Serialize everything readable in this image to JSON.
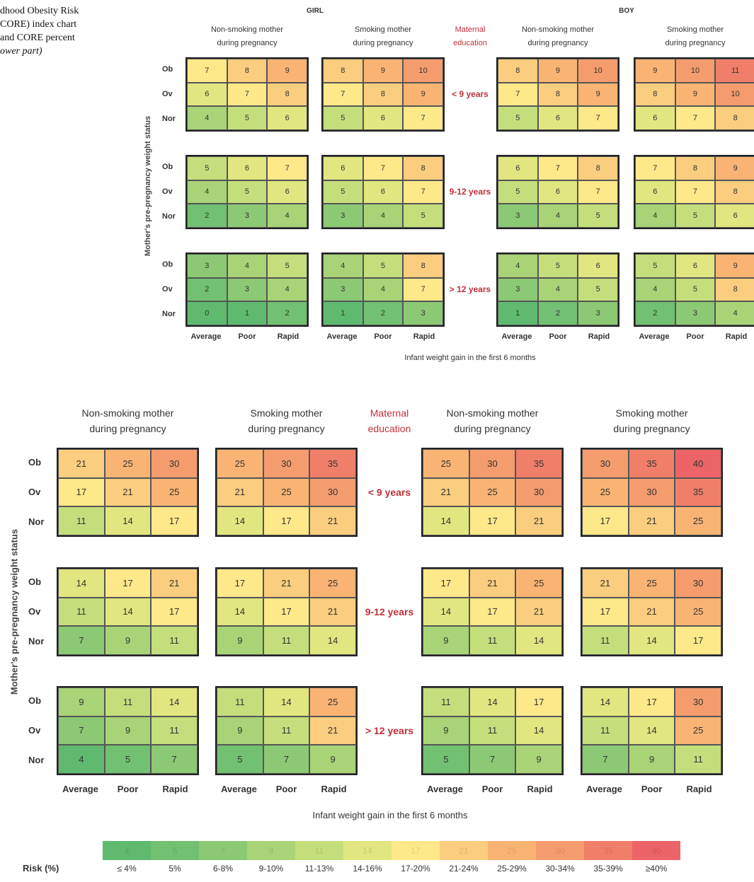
{
  "caption": {
    "line1": "dhood Obesity Risk",
    "line2": "CORE) index chart",
    "line3": "and CORE percent",
    "line4": "ower part)"
  },
  "top": {
    "girl_label": "GIRL",
    "boy_label": "BOY",
    "panel_headers": [
      [
        "Non-smoking mother",
        "during pregnancy"
      ],
      [
        "Smoking mother",
        "during pregnancy"
      ],
      [
        "Non-smoking mother",
        "during pregnancy"
      ],
      [
        "Smoking mother",
        "during pregnancy"
      ]
    ],
    "edu_header": [
      "Maternal",
      "education"
    ],
    "row_labels": [
      "Ob",
      "Ov",
      "Nor"
    ],
    "col_labels": [
      "Average",
      "Poor",
      "Rapid"
    ],
    "edu_labels": [
      "< 9 years",
      "9-12 years",
      "> 12 years"
    ],
    "y_axis_label": "Mother's pre-pregnancy weight status",
    "x_axis_label": "Infant weight gain in the first 6 months"
  },
  "bottom": {
    "panel_headers": [
      [
        "Non-smoking mother",
        "during pregnancy"
      ],
      [
        "Smoking mother",
        "during pregnancy"
      ],
      [
        "Non-smoking mother",
        "during pregnancy"
      ],
      [
        "Smoking mother",
        "during pregnancy"
      ]
    ],
    "edu_header": [
      "Maternal",
      "education"
    ],
    "row_labels": [
      "Ob",
      "Ov",
      "Nor"
    ],
    "col_labels": [
      "Average",
      "Poor",
      "Rapid"
    ],
    "edu_labels": [
      "< 9 years",
      "9-12 years",
      "> 12 years"
    ],
    "y_axis_label": "Mother's pre-pregnancy weight status",
    "x_axis_label": "Infant weight gain in the first 6 months"
  },
  "legend": {
    "title": "Risk (%)",
    "labels": [
      "≤ 4%",
      "5%",
      "6-8%",
      "9-10%",
      "11-13%",
      "14-16%",
      "17-20%",
      "21-24%",
      "25-29%",
      "30-34%",
      "35-39%",
      "≥40%"
    ],
    "faint_values": [
      "4",
      "5",
      "7",
      "9",
      "11",
      "14",
      "17",
      "21",
      "25",
      "30",
      "35",
      "40"
    ],
    "colors": [
      "#5fba6f",
      "#72c071",
      "#8cc974",
      "#a8d477",
      "#c4de7c",
      "#e1e680",
      "#fde88a",
      "#fbcd7e",
      "#f9b474",
      "#f59c6e",
      "#f07f6a",
      "#ec6468"
    ]
  },
  "chart_data": [
    {
      "type": "heatmap",
      "title": "",
      "measure": "CORE index",
      "rows": [
        "Ob",
        "Ov",
        "Nor"
      ],
      "columns": [
        "Average",
        "Poor",
        "Rapid"
      ],
      "groups": [
        "< 9 years",
        "9-12 years",
        "> 12 years"
      ],
      "panels": [
        "GIRL / Non-smoking mother during pregnancy",
        "GIRL / Smoking mother during pregnancy",
        "BOY / Non-smoking mother during pregnancy",
        "BOY / Smoking mother during pregnancy"
      ],
      "values": [
        [
          [
            [
              7,
              8,
              9
            ],
            [
              6,
              7,
              8
            ],
            [
              4,
              5,
              6
            ]
          ],
          [
            [
              8,
              9,
              10
            ],
            [
              7,
              8,
              9
            ],
            [
              5,
              6,
              7
            ]
          ],
          [
            [
              8,
              9,
              10
            ],
            [
              7,
              8,
              9
            ],
            [
              5,
              6,
              7
            ]
          ],
          [
            [
              9,
              10,
              11
            ],
            [
              8,
              9,
              10
            ],
            [
              6,
              7,
              8
            ]
          ]
        ],
        [
          [
            [
              5,
              6,
              7
            ],
            [
              4,
              5,
              6
            ],
            [
              2,
              3,
              4
            ]
          ],
          [
            [
              6,
              7,
              8
            ],
            [
              5,
              6,
              7
            ],
            [
              3,
              4,
              5
            ]
          ],
          [
            [
              6,
              7,
              8
            ],
            [
              5,
              6,
              7
            ],
            [
              3,
              4,
              5
            ]
          ],
          [
            [
              7,
              8,
              9
            ],
            [
              6,
              7,
              8
            ],
            [
              4,
              5,
              6
            ]
          ]
        ],
        [
          [
            [
              3,
              4,
              5
            ],
            [
              2,
              3,
              4
            ],
            [
              0,
              1,
              2
            ]
          ],
          [
            [
              4,
              5,
              8
            ],
            [
              3,
              4,
              7
            ],
            [
              1,
              2,
              3
            ]
          ],
          [
            [
              4,
              5,
              6
            ],
            [
              3,
              4,
              5
            ],
            [
              1,
              2,
              3
            ]
          ],
          [
            [
              5,
              6,
              9
            ],
            [
              4,
              5,
              8
            ],
            [
              2,
              3,
              4
            ]
          ]
        ]
      ],
      "xlabel": "Infant weight gain in the first 6 months",
      "ylabel": "Mother's pre-pregnancy weight status"
    },
    {
      "type": "heatmap",
      "title": "",
      "measure": "CORE percent",
      "rows": [
        "Ob",
        "Ov",
        "Nor"
      ],
      "columns": [
        "Average",
        "Poor",
        "Rapid"
      ],
      "groups": [
        "< 9 years",
        "9-12 years",
        "> 12 years"
      ],
      "panels": [
        "Non-smoking mother during pregnancy",
        "Smoking mother during pregnancy",
        "Non-smoking mother during pregnancy",
        "Smoking mother during pregnancy"
      ],
      "values": [
        [
          [
            [
              21,
              25,
              30
            ],
            [
              17,
              21,
              25
            ],
            [
              11,
              14,
              17
            ]
          ],
          [
            [
              25,
              30,
              35
            ],
            [
              21,
              25,
              30
            ],
            [
              14,
              17,
              21
            ]
          ],
          [
            [
              25,
              30,
              35
            ],
            [
              21,
              25,
              30
            ],
            [
              14,
              17,
              21
            ]
          ],
          [
            [
              30,
              35,
              40
            ],
            [
              25,
              30,
              35
            ],
            [
              17,
              21,
              25
            ]
          ]
        ],
        [
          [
            [
              14,
              17,
              21
            ],
            [
              11,
              14,
              17
            ],
            [
              7,
              9,
              11
            ]
          ],
          [
            [
              17,
              21,
              25
            ],
            [
              14,
              17,
              21
            ],
            [
              9,
              11,
              14
            ]
          ],
          [
            [
              17,
              21,
              25
            ],
            [
              14,
              17,
              21
            ],
            [
              9,
              11,
              14
            ]
          ],
          [
            [
              21,
              25,
              30
            ],
            [
              17,
              21,
              25
            ],
            [
              11,
              14,
              17
            ]
          ]
        ],
        [
          [
            [
              9,
              11,
              14
            ],
            [
              7,
              9,
              11
            ],
            [
              4,
              5,
              7
            ]
          ],
          [
            [
              11,
              14,
              25
            ],
            [
              9,
              11,
              21
            ],
            [
              5,
              7,
              9
            ]
          ],
          [
            [
              11,
              14,
              17
            ],
            [
              9,
              11,
              14
            ],
            [
              5,
              7,
              9
            ]
          ],
          [
            [
              14,
              17,
              30
            ],
            [
              11,
              14,
              25
            ],
            [
              7,
              9,
              11
            ]
          ]
        ]
      ],
      "xlabel": "Infant weight gain in the first 6 months",
      "ylabel": "Mother's pre-pregnancy weight status"
    }
  ]
}
